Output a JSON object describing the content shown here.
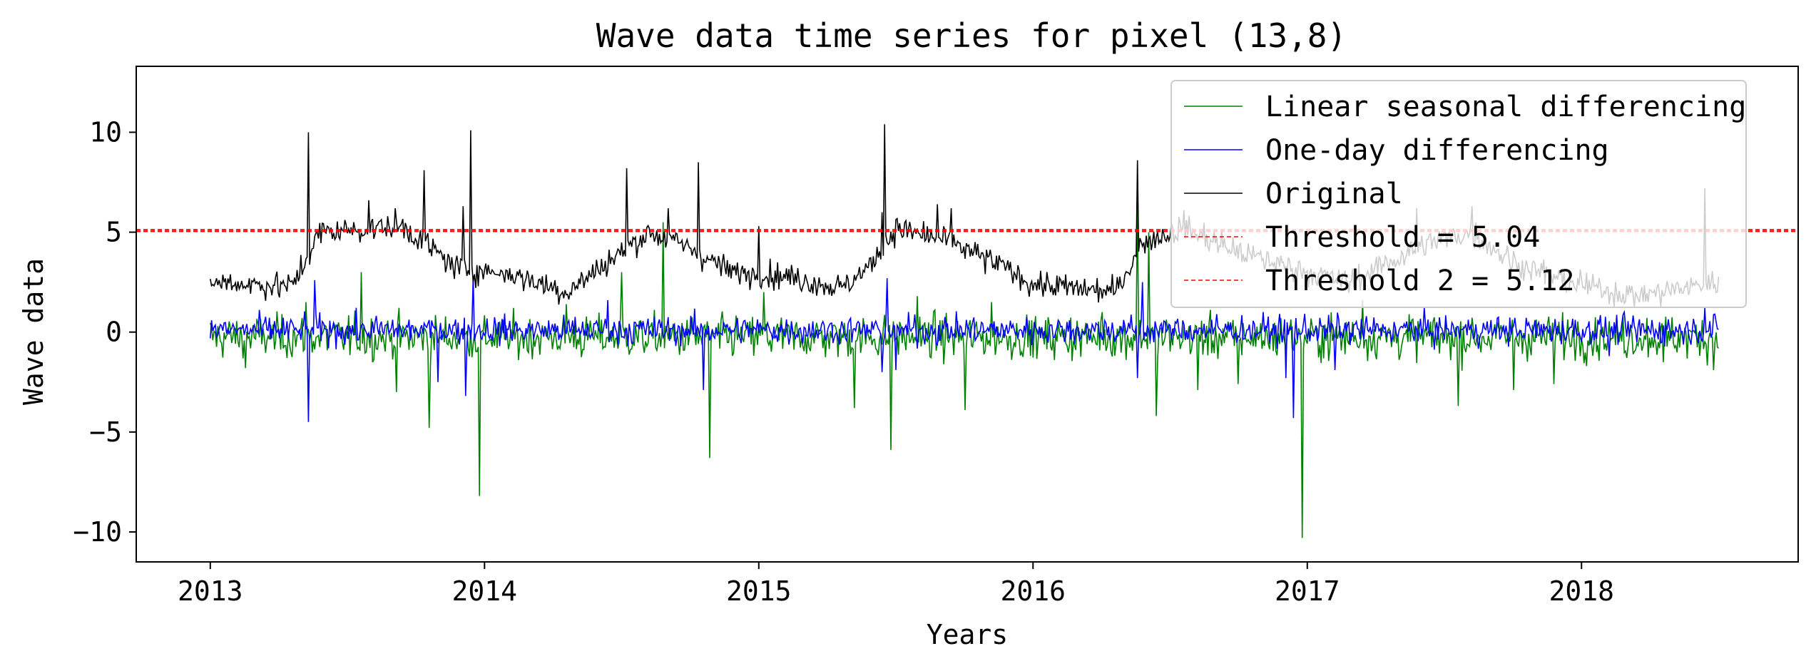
{
  "chart_data": {
    "type": "line",
    "title": "Wave data time series for pixel (13,8)",
    "xlabel": "Years",
    "ylabel": "Wave data",
    "xlim": [
      2012.73,
      2018.79
    ],
    "ylim": [
      -11.5,
      13.3
    ],
    "x_ticks": [
      2013,
      2014,
      2015,
      2016,
      2017,
      2018
    ],
    "x_tick_labels": [
      "2013",
      "2014",
      "2015",
      "2016",
      "2017",
      "2018"
    ],
    "y_ticks": [
      -10,
      -5,
      0,
      5,
      10
    ],
    "y_tick_labels": [
      "−10",
      "−5",
      "0",
      "5",
      "10"
    ],
    "grid": false,
    "legend_position": "top-right",
    "x_range": [
      2013.0,
      2018.5
    ],
    "n_points": 1200,
    "series": [
      {
        "name": "Linear seasonal differencing",
        "color": "#008000",
        "baseline": -0.25,
        "noise": 0.9,
        "spikes": [
          [
            2013.13,
            -1.8
          ],
          [
            2013.35,
            1.5
          ],
          [
            2013.55,
            3.0
          ],
          [
            2013.68,
            -3.0
          ],
          [
            2013.8,
            -4.8
          ],
          [
            2013.98,
            -8.2
          ],
          [
            2014.3,
            1.4
          ],
          [
            2014.5,
            3.0
          ],
          [
            2014.65,
            5.5
          ],
          [
            2014.82,
            -6.3
          ],
          [
            2015.02,
            2.0
          ],
          [
            2015.35,
            -3.8
          ],
          [
            2015.48,
            -5.9
          ],
          [
            2015.58,
            1.8
          ],
          [
            2015.75,
            -3.9
          ],
          [
            2015.85,
            1.5
          ],
          [
            2016.25,
            1.0
          ],
          [
            2016.38,
            6.3
          ],
          [
            2016.42,
            5.0
          ],
          [
            2016.45,
            -4.2
          ],
          [
            2016.6,
            -2.9
          ],
          [
            2016.75,
            -2.6
          ],
          [
            2016.98,
            -10.3
          ],
          [
            2017.2,
            1.6
          ],
          [
            2017.55,
            -3.7
          ],
          [
            2017.75,
            -2.9
          ],
          [
            2017.9,
            -2.6
          ],
          [
            2018.3,
            -1.5
          ],
          [
            2018.48,
            -1.9
          ]
        ]
      },
      {
        "name": "One-day differencing",
        "color": "#0000ff",
        "baseline": 0.1,
        "noise": 0.6,
        "spikes": [
          [
            2013.36,
            -4.5
          ],
          [
            2013.38,
            2.6
          ],
          [
            2013.83,
            -2.5
          ],
          [
            2013.93,
            -3.2
          ],
          [
            2013.96,
            2.8
          ],
          [
            2014.45,
            1.6
          ],
          [
            2014.8,
            -2.9
          ],
          [
            2015.45,
            -2.0
          ],
          [
            2015.47,
            2.7
          ],
          [
            2015.5,
            -1.9
          ],
          [
            2016.38,
            -2.3
          ],
          [
            2016.4,
            2.5
          ],
          [
            2016.92,
            -2.3
          ],
          [
            2016.95,
            -4.3
          ],
          [
            2017.1,
            -1.9
          ],
          [
            2018.1,
            -1.2
          ],
          [
            2018.45,
            1.2
          ]
        ]
      },
      {
        "name": "Original",
        "color": "#000000",
        "segments": [
          [
            2013.0,
            2.5
          ],
          [
            2013.3,
            2.3
          ],
          [
            2013.4,
            5.0
          ],
          [
            2013.7,
            5.3
          ],
          [
            2013.9,
            3.2
          ],
          [
            2014.1,
            2.9
          ],
          [
            2014.3,
            2.0
          ],
          [
            2014.45,
            3.5
          ],
          [
            2014.6,
            5.0
          ],
          [
            2014.75,
            4.2
          ],
          [
            2014.9,
            3.0
          ],
          [
            2015.1,
            2.8
          ],
          [
            2015.3,
            2.2
          ],
          [
            2015.4,
            3.2
          ],
          [
            2015.5,
            5.2
          ],
          [
            2015.7,
            4.5
          ],
          [
            2015.9,
            3.2
          ],
          [
            2016.0,
            2.4
          ],
          [
            2016.3,
            2.0
          ],
          [
            2016.4,
            4.5
          ],
          [
            2016.55,
            5.2
          ],
          [
            2016.75,
            4.0
          ],
          [
            2016.95,
            3.2
          ],
          [
            2017.15,
            2.5
          ],
          [
            2017.45,
            4.5
          ],
          [
            2017.6,
            5.0
          ],
          [
            2017.75,
            3.5
          ],
          [
            2017.95,
            2.5
          ],
          [
            2018.2,
            1.8
          ],
          [
            2018.5,
            2.5
          ]
        ],
        "noise": 0.55,
        "spikes": [
          [
            2013.36,
            10.0
          ],
          [
            2013.58,
            6.6
          ],
          [
            2013.78,
            8.1
          ],
          [
            2013.92,
            6.3
          ],
          [
            2013.95,
            10.1
          ],
          [
            2014.52,
            8.2
          ],
          [
            2014.67,
            6.2
          ],
          [
            2014.78,
            8.5
          ],
          [
            2015.0,
            5.3
          ],
          [
            2015.45,
            6.0
          ],
          [
            2015.46,
            10.4
          ],
          [
            2015.65,
            6.4
          ],
          [
            2015.7,
            6.2
          ],
          [
            2016.38,
            8.6
          ],
          [
            2016.55,
            6.1
          ],
          [
            2017.4,
            6.2
          ],
          [
            2017.6,
            6.3
          ],
          [
            2018.45,
            7.2
          ]
        ]
      }
    ],
    "thresholds": [
      {
        "name": "Threshold = 5.04",
        "value": 5.04,
        "color": "#ff0000"
      },
      {
        "name": "Threshold 2 = 5.12",
        "value": 5.12,
        "color": "#ff0000"
      }
    ],
    "legend": [
      {
        "label": "Linear seasonal differencing",
        "color": "#008000",
        "style": "solid"
      },
      {
        "label": "One-day differencing",
        "color": "#0000ff",
        "style": "solid"
      },
      {
        "label": "Original",
        "color": "#000000",
        "style": "solid"
      },
      {
        "label": "Threshold = 5.04",
        "color": "#ff0000",
        "style": "dashed"
      },
      {
        "label": "Threshold 2 = 5.12",
        "color": "#ff0000",
        "style": "dashed"
      }
    ]
  }
}
